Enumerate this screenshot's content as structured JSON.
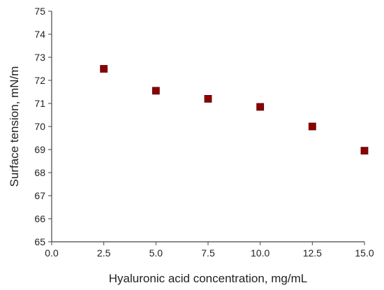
{
  "chart_data": {
    "type": "scatter",
    "title": "",
    "xlabel": "Hyaluronic acid concentration, mg/mL",
    "ylabel": "Surface tension, mN/m",
    "xlim": [
      0,
      15
    ],
    "ylim": [
      65,
      75
    ],
    "x_ticks": [
      0,
      2.5,
      5,
      7.5,
      10,
      12.5,
      15
    ],
    "x_tick_labels": [
      "0.0",
      "2.5",
      "5.0",
      "7.5",
      "10.0",
      "12.5",
      "15.0"
    ],
    "y_ticks": [
      65,
      66,
      67,
      68,
      69,
      70,
      71,
      72,
      73,
      74,
      75
    ],
    "y_tick_labels": [
      "65",
      "66",
      "67",
      "68",
      "69",
      "70",
      "71",
      "72",
      "73",
      "74",
      "75"
    ],
    "grid": false,
    "legend": "none",
    "marker": "square",
    "marker_color": "#8b0000",
    "series": [
      {
        "x": [
          2.5,
          5.0,
          7.5,
          10.0,
          12.5,
          15.0
        ],
        "y": [
          72.5,
          71.55,
          71.2,
          70.85,
          70.0,
          68.95
        ]
      }
    ]
  }
}
